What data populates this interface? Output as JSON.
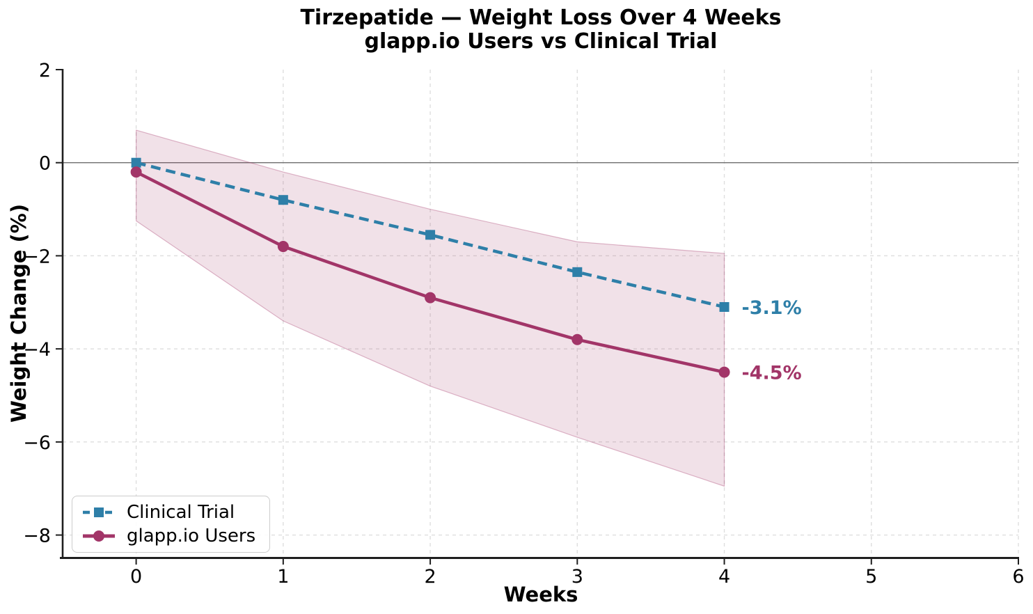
{
  "chart_data": {
    "type": "line",
    "title_line1": "Tirzepatide — Weight Loss Over 4 Weeks",
    "title_line2": "glapp.io Users vs Clinical Trial",
    "xlabel": "Weeks",
    "ylabel": "Weight Change (%)",
    "xlim": [
      -0.5,
      6.0
    ],
    "ylim": [
      -8.47,
      2
    ],
    "x_ticks": [
      0,
      1,
      2,
      3,
      4,
      5,
      6
    ],
    "x_tick_labels": [
      "0",
      "1",
      "2",
      "3",
      "4",
      "5",
      "6"
    ],
    "y_ticks": [
      2,
      0,
      -2,
      -4,
      -6,
      -8
    ],
    "y_tick_labels": [
      "2",
      "0",
      "−2",
      "−4",
      "−6",
      "−8"
    ],
    "grid": true,
    "grid_style": "dashed",
    "zero_line_y": 0,
    "x": [
      0,
      1,
      2,
      3,
      4
    ],
    "series": [
      {
        "name": "Clinical Trial",
        "values": [
          0.0,
          -0.8,
          -1.55,
          -2.35,
          -3.1
        ],
        "color": "#2e7fa8",
        "line_style": "dashed",
        "marker": "square"
      },
      {
        "name": "glapp.io Users",
        "values": [
          -0.2,
          -1.8,
          -2.9,
          -3.8,
          -4.5
        ],
        "color": "#a23568",
        "line_style": "solid",
        "marker": "circle"
      }
    ],
    "band": {
      "attached_to": "glapp.io Users",
      "upper": [
        0.7,
        -0.2,
        -1.0,
        -1.7,
        -1.95
      ],
      "lower": [
        -1.25,
        -3.4,
        -4.8,
        -5.9,
        -6.95
      ],
      "color": "#a23568",
      "fill_opacity": 0.15
    },
    "annotations": [
      {
        "text": "-3.1%",
        "x": 4,
        "y": -3.1,
        "color": "#2e7fa8"
      },
      {
        "text": "-4.5%",
        "x": 4,
        "y": -4.5,
        "color": "#a23568"
      }
    ],
    "legend": {
      "position": "lower left",
      "items": [
        "Clinical Trial",
        "glapp.io Users"
      ]
    },
    "colors": {
      "grid": "#dedede",
      "zero_line": "#6e6e6e",
      "spine": "#1f1f1f",
      "tick_text": "#000000",
      "background": "#ffffff"
    }
  }
}
